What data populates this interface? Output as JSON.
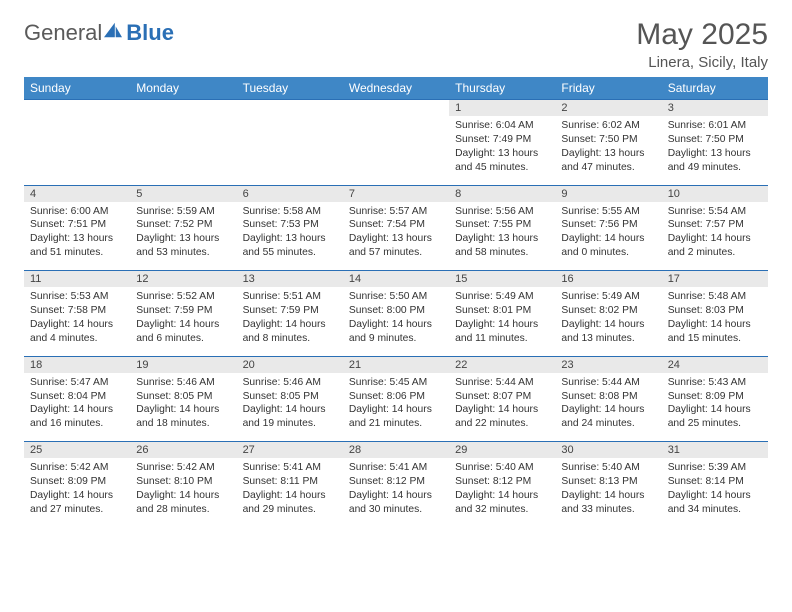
{
  "brand": {
    "general": "General",
    "blue": "Blue"
  },
  "title": "May 2025",
  "location": "Linera, Sicily, Italy",
  "colors": {
    "header_bg": "#3f87c6",
    "header_text": "#ffffff",
    "rule": "#2a6fb5",
    "daynum_bg": "#e9e9e9",
    "body_text": "#333333",
    "title_text": "#555555"
  },
  "weekdays": [
    "Sunday",
    "Monday",
    "Tuesday",
    "Wednesday",
    "Thursday",
    "Friday",
    "Saturday"
  ],
  "weeks": [
    {
      "nums": [
        "",
        "",
        "",
        "",
        "1",
        "2",
        "3"
      ],
      "cells": [
        null,
        null,
        null,
        null,
        {
          "sr": "Sunrise: 6:04 AM",
          "ss": "Sunset: 7:49 PM",
          "d1": "Daylight: 13 hours",
          "d2": "and 45 minutes."
        },
        {
          "sr": "Sunrise: 6:02 AM",
          "ss": "Sunset: 7:50 PM",
          "d1": "Daylight: 13 hours",
          "d2": "and 47 minutes."
        },
        {
          "sr": "Sunrise: 6:01 AM",
          "ss": "Sunset: 7:50 PM",
          "d1": "Daylight: 13 hours",
          "d2": "and 49 minutes."
        }
      ]
    },
    {
      "nums": [
        "4",
        "5",
        "6",
        "7",
        "8",
        "9",
        "10"
      ],
      "cells": [
        {
          "sr": "Sunrise: 6:00 AM",
          "ss": "Sunset: 7:51 PM",
          "d1": "Daylight: 13 hours",
          "d2": "and 51 minutes."
        },
        {
          "sr": "Sunrise: 5:59 AM",
          "ss": "Sunset: 7:52 PM",
          "d1": "Daylight: 13 hours",
          "d2": "and 53 minutes."
        },
        {
          "sr": "Sunrise: 5:58 AM",
          "ss": "Sunset: 7:53 PM",
          "d1": "Daylight: 13 hours",
          "d2": "and 55 minutes."
        },
        {
          "sr": "Sunrise: 5:57 AM",
          "ss": "Sunset: 7:54 PM",
          "d1": "Daylight: 13 hours",
          "d2": "and 57 minutes."
        },
        {
          "sr": "Sunrise: 5:56 AM",
          "ss": "Sunset: 7:55 PM",
          "d1": "Daylight: 13 hours",
          "d2": "and 58 minutes."
        },
        {
          "sr": "Sunrise: 5:55 AM",
          "ss": "Sunset: 7:56 PM",
          "d1": "Daylight: 14 hours",
          "d2": "and 0 minutes."
        },
        {
          "sr": "Sunrise: 5:54 AM",
          "ss": "Sunset: 7:57 PM",
          "d1": "Daylight: 14 hours",
          "d2": "and 2 minutes."
        }
      ]
    },
    {
      "nums": [
        "11",
        "12",
        "13",
        "14",
        "15",
        "16",
        "17"
      ],
      "cells": [
        {
          "sr": "Sunrise: 5:53 AM",
          "ss": "Sunset: 7:58 PM",
          "d1": "Daylight: 14 hours",
          "d2": "and 4 minutes."
        },
        {
          "sr": "Sunrise: 5:52 AM",
          "ss": "Sunset: 7:59 PM",
          "d1": "Daylight: 14 hours",
          "d2": "and 6 minutes."
        },
        {
          "sr": "Sunrise: 5:51 AM",
          "ss": "Sunset: 7:59 PM",
          "d1": "Daylight: 14 hours",
          "d2": "and 8 minutes."
        },
        {
          "sr": "Sunrise: 5:50 AM",
          "ss": "Sunset: 8:00 PM",
          "d1": "Daylight: 14 hours",
          "d2": "and 9 minutes."
        },
        {
          "sr": "Sunrise: 5:49 AM",
          "ss": "Sunset: 8:01 PM",
          "d1": "Daylight: 14 hours",
          "d2": "and 11 minutes."
        },
        {
          "sr": "Sunrise: 5:49 AM",
          "ss": "Sunset: 8:02 PM",
          "d1": "Daylight: 14 hours",
          "d2": "and 13 minutes."
        },
        {
          "sr": "Sunrise: 5:48 AM",
          "ss": "Sunset: 8:03 PM",
          "d1": "Daylight: 14 hours",
          "d2": "and 15 minutes."
        }
      ]
    },
    {
      "nums": [
        "18",
        "19",
        "20",
        "21",
        "22",
        "23",
        "24"
      ],
      "cells": [
        {
          "sr": "Sunrise: 5:47 AM",
          "ss": "Sunset: 8:04 PM",
          "d1": "Daylight: 14 hours",
          "d2": "and 16 minutes."
        },
        {
          "sr": "Sunrise: 5:46 AM",
          "ss": "Sunset: 8:05 PM",
          "d1": "Daylight: 14 hours",
          "d2": "and 18 minutes."
        },
        {
          "sr": "Sunrise: 5:46 AM",
          "ss": "Sunset: 8:05 PM",
          "d1": "Daylight: 14 hours",
          "d2": "and 19 minutes."
        },
        {
          "sr": "Sunrise: 5:45 AM",
          "ss": "Sunset: 8:06 PM",
          "d1": "Daylight: 14 hours",
          "d2": "and 21 minutes."
        },
        {
          "sr": "Sunrise: 5:44 AM",
          "ss": "Sunset: 8:07 PM",
          "d1": "Daylight: 14 hours",
          "d2": "and 22 minutes."
        },
        {
          "sr": "Sunrise: 5:44 AM",
          "ss": "Sunset: 8:08 PM",
          "d1": "Daylight: 14 hours",
          "d2": "and 24 minutes."
        },
        {
          "sr": "Sunrise: 5:43 AM",
          "ss": "Sunset: 8:09 PM",
          "d1": "Daylight: 14 hours",
          "d2": "and 25 minutes."
        }
      ]
    },
    {
      "nums": [
        "25",
        "26",
        "27",
        "28",
        "29",
        "30",
        "31"
      ],
      "cells": [
        {
          "sr": "Sunrise: 5:42 AM",
          "ss": "Sunset: 8:09 PM",
          "d1": "Daylight: 14 hours",
          "d2": "and 27 minutes."
        },
        {
          "sr": "Sunrise: 5:42 AM",
          "ss": "Sunset: 8:10 PM",
          "d1": "Daylight: 14 hours",
          "d2": "and 28 minutes."
        },
        {
          "sr": "Sunrise: 5:41 AM",
          "ss": "Sunset: 8:11 PM",
          "d1": "Daylight: 14 hours",
          "d2": "and 29 minutes."
        },
        {
          "sr": "Sunrise: 5:41 AM",
          "ss": "Sunset: 8:12 PM",
          "d1": "Daylight: 14 hours",
          "d2": "and 30 minutes."
        },
        {
          "sr": "Sunrise: 5:40 AM",
          "ss": "Sunset: 8:12 PM",
          "d1": "Daylight: 14 hours",
          "d2": "and 32 minutes."
        },
        {
          "sr": "Sunrise: 5:40 AM",
          "ss": "Sunset: 8:13 PM",
          "d1": "Daylight: 14 hours",
          "d2": "and 33 minutes."
        },
        {
          "sr": "Sunrise: 5:39 AM",
          "ss": "Sunset: 8:14 PM",
          "d1": "Daylight: 14 hours",
          "d2": "and 34 minutes."
        }
      ]
    }
  ]
}
